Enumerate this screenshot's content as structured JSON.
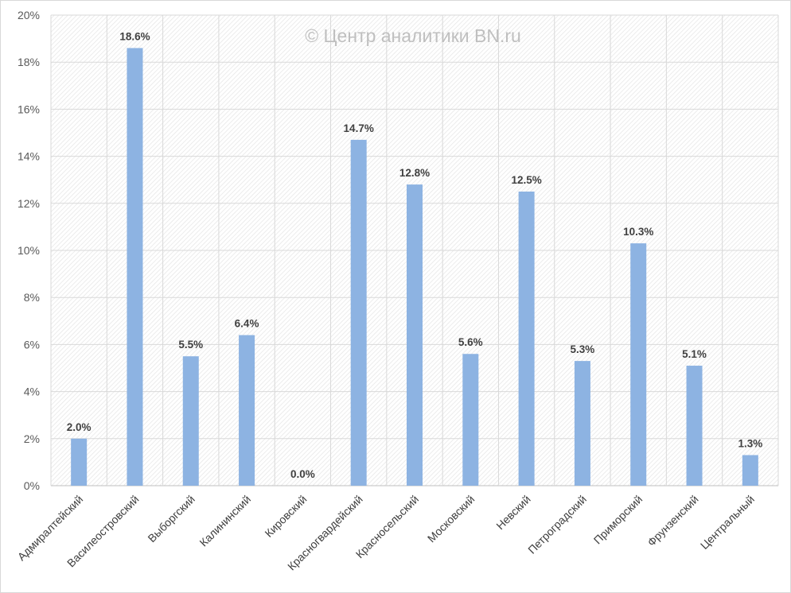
{
  "chart_data": {
    "type": "bar",
    "title": "",
    "watermark": "© Центр аналитики BN.ru",
    "xlabel": "",
    "ylabel": "",
    "ylim": [
      0,
      20
    ],
    "yticks": [
      0,
      2,
      4,
      6,
      8,
      10,
      12,
      14,
      16,
      18,
      20
    ],
    "ytick_labels": [
      "0%",
      "2%",
      "4%",
      "6%",
      "8%",
      "10%",
      "12%",
      "14%",
      "16%",
      "18%",
      "20%"
    ],
    "grid": true,
    "legend": "none",
    "bar_color": "#8db3e2",
    "categories": [
      "Адмиралтейский",
      "Василеостровский",
      "Выборгский",
      "Калининский",
      "Кировский",
      "Красногвардейский",
      "Красносельский",
      "Московский",
      "Невский",
      "Петроградский",
      "Приморский",
      "Фрунзенский",
      "Центральный"
    ],
    "values": [
      2.0,
      18.6,
      5.5,
      6.4,
      0.0,
      14.7,
      12.8,
      5.6,
      12.5,
      5.3,
      10.3,
      5.1,
      1.3
    ],
    "data_labels": [
      "2.0%",
      "18.6%",
      "5.5%",
      "6.4%",
      "0.0%",
      "14.7%",
      "12.8%",
      "5.6%",
      "12.5%",
      "5.3%",
      "10.3%",
      "5.1%",
      "1.3%"
    ]
  }
}
